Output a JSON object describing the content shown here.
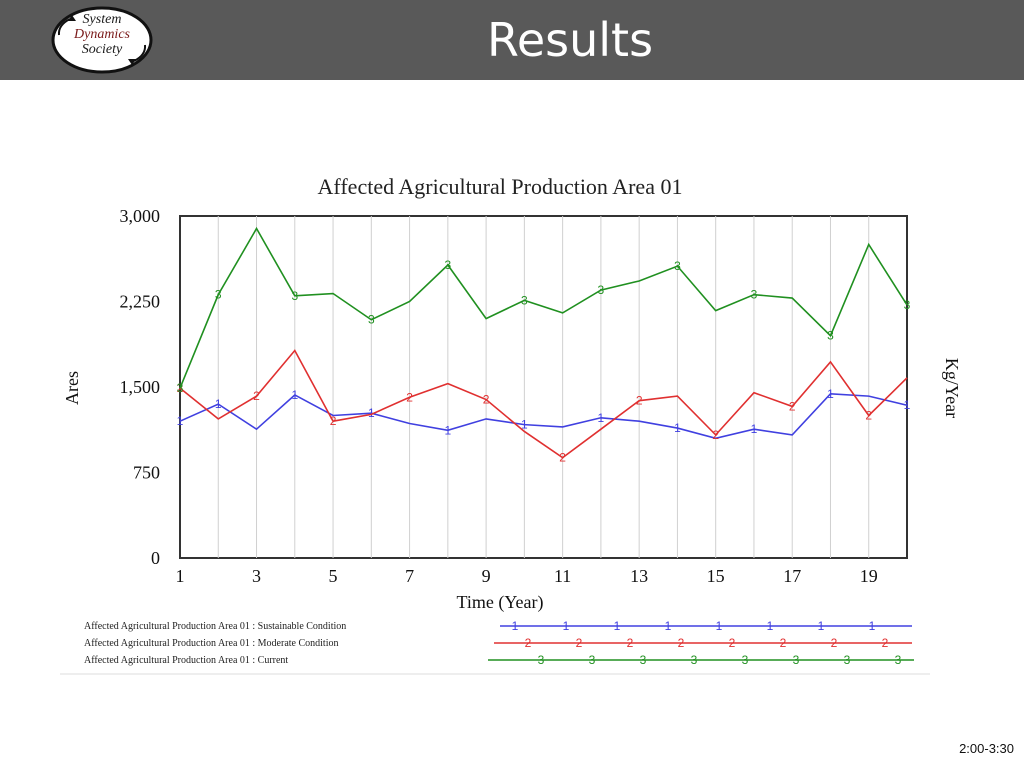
{
  "header": {
    "title": "Results",
    "logo_lines": [
      "System",
      "Dynamics",
      "Society"
    ]
  },
  "footer": {
    "time": "2:00-3:30"
  },
  "colors": {
    "header_bg": "#595959",
    "sustainable": "#4040e0",
    "moderate": "#e03030",
    "current": "#209020"
  },
  "chart_data": {
    "type": "line",
    "title": "Affected Agricultural Production Area 01",
    "xlabel": "Time (Year)",
    "ylabel": "Ares",
    "y2label": "Kg/Year",
    "xlim": [
      1,
      20
    ],
    "ylim": [
      0,
      3000
    ],
    "x_ticks": [
      1,
      3,
      5,
      7,
      9,
      11,
      13,
      15,
      17,
      19
    ],
    "y_ticks": [
      0,
      750,
      1500,
      2250,
      3000
    ],
    "y_tick_labels": [
      "0",
      "750",
      "1,500",
      "2,250",
      "3,000"
    ],
    "grid": true,
    "legend_position": "bottom",
    "x": [
      1,
      2,
      3,
      4,
      5,
      6,
      7,
      8,
      9,
      10,
      11,
      12,
      13,
      14,
      15,
      16,
      17,
      18,
      19,
      20
    ],
    "series": [
      {
        "name": "Affected Agricultural Production Area 01 : Sustainable Condition",
        "marker": "1",
        "color": "#4040e0",
        "values": [
          1200,
          1350,
          1130,
          1430,
          1250,
          1270,
          1180,
          1120,
          1220,
          1170,
          1150,
          1230,
          1200,
          1140,
          1050,
          1130,
          1080,
          1440,
          1420,
          1340
        ]
      },
      {
        "name": "Affected Agricultural Production Area 01 : Moderate Condition",
        "marker": "2",
        "color": "#e03030",
        "values": [
          1490,
          1220,
          1420,
          1820,
          1200,
          1260,
          1410,
          1530,
          1390,
          1110,
          880,
          1130,
          1380,
          1420,
          1080,
          1450,
          1330,
          1720,
          1250,
          1580
        ]
      },
      {
        "name": "Affected Agricultural Production Area 01 : Current",
        "marker": "3",
        "color": "#209020",
        "values": [
          1490,
          2310,
          2890,
          2300,
          2320,
          2090,
          2250,
          2570,
          2100,
          2260,
          2150,
          2350,
          2430,
          2560,
          2170,
          2310,
          2280,
          1950,
          2750,
          2220
        ]
      }
    ]
  }
}
